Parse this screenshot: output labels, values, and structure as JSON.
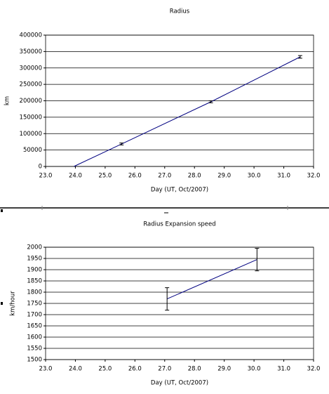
{
  "chart_data": [
    {
      "type": "line",
      "title": "Radius",
      "xlabel": "Day (UT, Oct/2007)",
      "ylabel": "km",
      "x": [
        23.95,
        25.55,
        28.55,
        31.55
      ],
      "values": [
        0,
        68400,
        196800,
        333700
      ],
      "errors": [
        0,
        3000,
        3000,
        4000
      ],
      "color": "#000080",
      "xlim": [
        23,
        32
      ],
      "xticks": [
        {
          "value": 23,
          "label": "23.0"
        },
        {
          "value": 24,
          "label": "24.0"
        },
        {
          "value": 25,
          "label": "25.0"
        },
        {
          "value": 26,
          "label": "26.0"
        },
        {
          "value": 27,
          "label": "27.0"
        },
        {
          "value": 28,
          "label": "28.0"
        },
        {
          "value": 29,
          "label": "29.0"
        },
        {
          "value": 30,
          "label": "30.0"
        },
        {
          "value": 31,
          "label": "31.0"
        },
        {
          "value": 32,
          "label": "32.0"
        }
      ],
      "ylim": [
        0,
        400000
      ],
      "yticks": [
        0,
        50000,
        100000,
        150000,
        200000,
        250000,
        300000,
        350000,
        400000
      ],
      "grid": true
    },
    {
      "type": "line",
      "title": "Radius Expansion speed",
      "xlabel": "Day (UT, Oct/2007)",
      "ylabel": "km/hour",
      "x": [
        27.08,
        30.1
      ],
      "values": [
        1770,
        1945
      ],
      "errors": [
        50,
        50
      ],
      "color": "#000080",
      "xlim": [
        23,
        32
      ],
      "xticks": [
        {
          "value": 23,
          "label": "23.0"
        },
        {
          "value": 24,
          "label": "24.0"
        },
        {
          "value": 25,
          "label": "25.0"
        },
        {
          "value": 26,
          "label": "26.0"
        },
        {
          "value": 27,
          "label": "27.0"
        },
        {
          "value": 28,
          "label": "28.0"
        },
        {
          "value": 29,
          "label": "29.0"
        },
        {
          "value": 30,
          "label": "30.0"
        },
        {
          "value": 31,
          "label": "31.0"
        },
        {
          "value": 32,
          "label": "32.0"
        }
      ],
      "ylim": [
        1500,
        2000
      ],
      "yticks": [
        1500,
        1550,
        1600,
        1650,
        1700,
        1750,
        1800,
        1850,
        1900,
        1950,
        2000
      ],
      "grid": true
    }
  ]
}
